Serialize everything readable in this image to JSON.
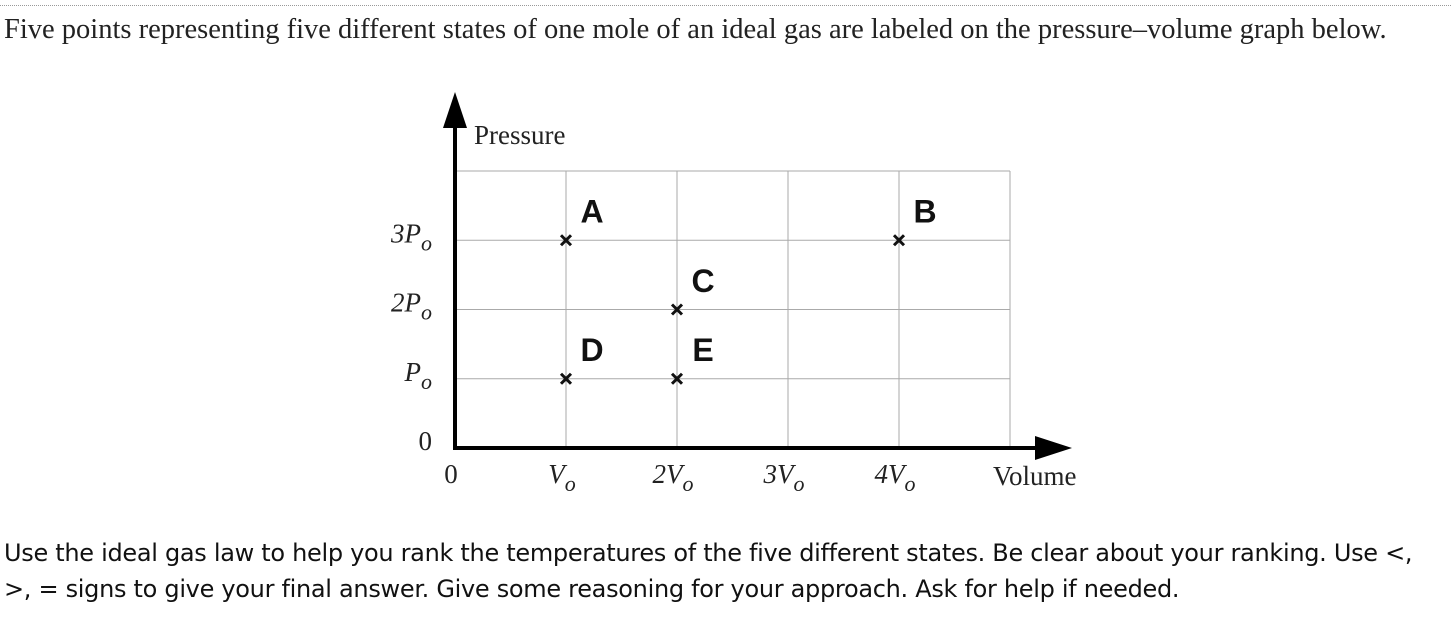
{
  "intro": "Five points representing five different states of one mole of an ideal gas are labeled on the pressure–volume graph below.",
  "question": "Use the ideal gas law to help you rank the temperatures of the five different states. Be clear about your ranking. Use <, >, = signs to give your final answer. Give some reasoning for your approach. Ask for help if needed.",
  "chart_data": {
    "type": "scatter",
    "x_label": "Volume",
    "y_label": "Pressure",
    "labels": [
      "A",
      "B",
      "C",
      "D",
      "E"
    ],
    "x": [
      1,
      4,
      2,
      1,
      2
    ],
    "values": [
      3,
      3,
      2,
      1,
      1
    ],
    "color": "#111",
    "xlim": [
      0,
      5
    ],
    "ylim": [
      0,
      4
    ],
    "xticks": [
      0,
      {
        "value": 1,
        "label": "Vo"
      },
      {
        "value": 2,
        "label": "2Vo"
      },
      {
        "value": 3,
        "label": "3Vo"
      },
      {
        "value": 4,
        "label": "4Vo"
      }
    ],
    "yticks": [
      0,
      {
        "value": 1,
        "label": "Po"
      },
      {
        "value": 2,
        "label": "2Po"
      },
      {
        "value": 3,
        "label": "3Po"
      }
    ],
    "grid": true
  }
}
